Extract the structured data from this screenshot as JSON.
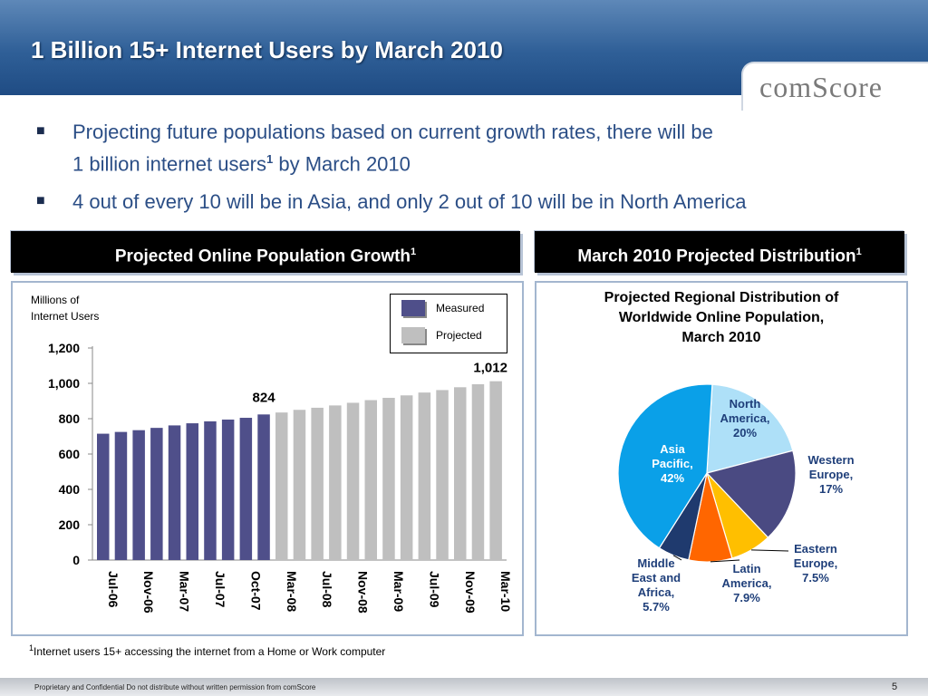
{
  "header": {
    "title": "1 Billion 15+ Internet Users by March 2010",
    "logo_text": "comScore",
    "colors": {
      "title_bar": "#2f5f97"
    }
  },
  "bullets": [
    {
      "line1": "Projecting future populations based on current growth rates, there will be",
      "line2": "1 billion internet users",
      "sup": "1",
      "line2_end": " by March 2010"
    },
    {
      "line1": "4 out of every 10 will be in Asia, and only 2 out of 10 will be in North America"
    }
  ],
  "left_panel": {
    "heading": "Projected Online Population Growth",
    "heading_sup": "1",
    "y_unit_label_1": "Millions of",
    "y_unit_label_2": "Internet Users",
    "legend_measured": "Measured",
    "legend_projected": "Projected",
    "callout_824": "824",
    "callout_1012": "1,012"
  },
  "right_panel": {
    "heading": "March 2010 Projected Distribution",
    "heading_sup": "1",
    "pie_title_1": "Projected Regional Distribution of",
    "pie_title_2": "Worldwide Online Population,",
    "pie_title_3": "March 2010"
  },
  "chart_data": [
    {
      "type": "bar",
      "ylabel": "Millions of Internet Users",
      "ylim": [
        0,
        1200
      ],
      "yticks": [
        0,
        200,
        400,
        600,
        800,
        1000,
        1200
      ],
      "ytick_labels": [
        "0",
        "200",
        "400",
        "600",
        "800",
        "1,000",
        "1,200"
      ],
      "xtick_labels": [
        "Jul-06",
        "Nov-06",
        "Mar-07",
        "Jul-07",
        "Oct-07",
        "Mar-08",
        "Jul-08",
        "Nov-08",
        "Mar-09",
        "Jul-09",
        "Nov-09",
        "Mar-10"
      ],
      "values": [
        715,
        725,
        735,
        748,
        762,
        774,
        785,
        795,
        805,
        824,
        835,
        850,
        862,
        875,
        890,
        905,
        918,
        932,
        948,
        962,
        978,
        995,
        1012
      ],
      "kind": [
        "Measured",
        "Measured",
        "Measured",
        "Measured",
        "Measured",
        "Measured",
        "Measured",
        "Measured",
        "Measured",
        "Measured",
        "Projected",
        "Projected",
        "Projected",
        "Projected",
        "Projected",
        "Projected",
        "Projected",
        "Projected",
        "Projected",
        "Projected",
        "Projected",
        "Projected",
        "Projected"
      ],
      "legend": [
        "Measured",
        "Projected"
      ],
      "colors": {
        "Measured": "#4f4f8a",
        "Projected": "#bfbfbf"
      },
      "grid": false
    },
    {
      "type": "pie",
      "title": "Projected Regional Distribution of Worldwide Online Population, March 2010",
      "slices": [
        {
          "label": "North America, 20%",
          "value": 20,
          "color": "#aee0f8",
          "label_color": "#1f3f7a"
        },
        {
          "label": "Western Europe, 17%",
          "value": 17,
          "color": "#4a4a82",
          "label_color": "#1f3f7a"
        },
        {
          "label": "Eastern Europe, 7.5%",
          "value": 7.5,
          "color": "#ffbf00",
          "label_color": "#1f3f7a"
        },
        {
          "label": "Latin America, 7.9%",
          "value": 7.9,
          "color": "#ff6600",
          "label_color": "#1f3f7a"
        },
        {
          "label": "Middle East and Africa, 5.7%",
          "value": 5.7,
          "color": "#1f3a6e",
          "label_color": "#1f3f7a"
        },
        {
          "label": "Asia Pacific, 42%",
          "value": 42,
          "color": "#0aa0e8",
          "label_color": "#ffffff"
        }
      ]
    }
  ],
  "footnote": {
    "sup": "1",
    "text": "Internet users 15+ accessing the internet from a Home or Work computer"
  },
  "footer": {
    "confidential": "Proprietary and Confidential Do not distribute without written permission from comScore",
    "page": "5"
  }
}
